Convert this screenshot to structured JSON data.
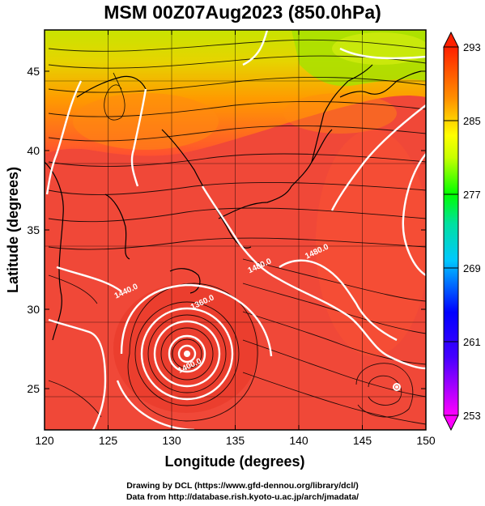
{
  "header": {
    "title": "MSM 00Z07Aug2023 (850.0hPa)"
  },
  "footer": {
    "line1": "Drawing by DCL (https://www.gfd-dennou.org/library/dcl/)",
    "line2": "Data from http://database.rish.kyoto-u.ac.jp/arch/jmadata/"
  },
  "chart_data": {
    "type": "heatmap",
    "title": "MSM 00Z07Aug2023 (850.0hPa)",
    "xlabel": "Longitude (degrees)",
    "ylabel": "Latitude  (degrees)",
    "xlim": [
      120,
      150
    ],
    "ylim": [
      22.4,
      47.6
    ],
    "x_ticks": [
      "120",
      "125",
      "130",
      "135",
      "140",
      "145",
      "150"
    ],
    "y_ticks": [
      "25",
      "30",
      "35",
      "40",
      "45"
    ],
    "x_tick_values": [
      120,
      125,
      130,
      135,
      140,
      145,
      150
    ],
    "y_tick_values": [
      25,
      30,
      35,
      40,
      45
    ],
    "grid": true,
    "colorbar": {
      "min": 253,
      "max": 293,
      "ticks": [
        "293",
        "285",
        "277",
        "269",
        "261",
        "253"
      ],
      "tick_values": [
        293,
        285,
        277,
        269,
        261,
        253
      ],
      "colors": [
        "#ff00ff",
        "#0000ff",
        "#00bfff",
        "#00ff00",
        "#ffff00",
        "#ff8c00",
        "#ff0000"
      ]
    },
    "contour_labels": [
      {
        "text": "1400.0",
        "lon": 131.5,
        "lat": 26.3
      },
      {
        "text": "1440.0",
        "lon": 126.5,
        "lat": 31.0
      },
      {
        "text": "1360.0",
        "lon": 132.5,
        "lat": 30.3
      },
      {
        "text": "1480.0",
        "lon": 137.0,
        "lat": 32.6
      },
      {
        "text": "1480.0",
        "lon": 141.5,
        "lat": 33.5
      }
    ],
    "low_center": {
      "lon": 131.0,
      "lat": 27.8
    },
    "secondary_center": {
      "lon": 147.5,
      "lat": 25.5
    },
    "overlays": [
      "temperature shading (K)",
      "geopotential height contours (m)",
      "streamlines"
    ]
  }
}
